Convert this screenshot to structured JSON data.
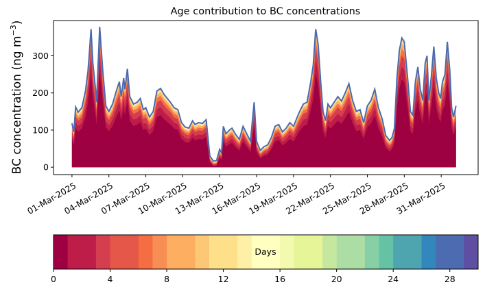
{
  "chart_data": [
    {
      "type": "area",
      "title": "Age contribution to BC concentrations",
      "xlabel": "",
      "ylabel": "BC concentration (ng m",
      "ylabel_unit_superscript": "−3",
      "ylabel_close": ")",
      "ylim": [
        -20,
        395
      ],
      "yticks": [
        0,
        100,
        200,
        300
      ],
      "xlim_days": [
        -1.5,
        33.0
      ],
      "xtick_positions_days": [
        0,
        3,
        6,
        9,
        12,
        15,
        18,
        21,
        24,
        27,
        30
      ],
      "xticks": [
        "01-Mar-2025",
        "04-Mar-2025",
        "07-Mar-2025",
        "10-Mar-2025",
        "13-Mar-2025",
        "16-Mar-2025",
        "19-Mar-2025",
        "22-Mar-2025",
        "25-Mar-2025",
        "28-Mar-2025",
        "31-Mar-2025"
      ],
      "x_days": [
        0.0,
        0.15,
        0.3,
        0.5,
        0.8,
        1.1,
        1.3,
        1.4,
        1.55,
        1.7,
        1.9,
        2.0,
        2.25,
        2.5,
        2.75,
        3.0,
        3.3,
        3.6,
        3.85,
        4.0,
        4.2,
        4.3,
        4.5,
        4.7,
        5.0,
        5.3,
        5.55,
        5.8,
        6.0,
        6.3,
        6.6,
        6.9,
        7.2,
        7.5,
        7.75,
        8.0,
        8.3,
        8.6,
        8.9,
        9.2,
        9.5,
        9.8,
        10.0,
        10.3,
        10.6,
        10.9,
        11.2,
        11.5,
        11.75,
        12.0,
        12.15,
        12.3,
        12.5,
        12.8,
        13.0,
        13.3,
        13.6,
        13.9,
        14.2,
        14.5,
        14.8,
        15.0,
        15.3,
        15.6,
        15.9,
        16.2,
        16.5,
        16.8,
        17.1,
        17.4,
        17.7,
        18.0,
        18.3,
        18.5,
        18.8,
        19.1,
        19.4,
        19.6,
        19.8,
        20.0,
        20.2,
        20.4,
        20.6,
        20.8,
        21.0,
        21.3,
        21.6,
        21.9,
        22.2,
        22.5,
        22.8,
        23.1,
        23.4,
        23.7,
        24.0,
        24.3,
        24.6,
        24.9,
        25.2,
        25.5,
        25.8,
        26.0,
        26.2,
        26.4,
        26.6,
        26.8,
        27.0,
        27.3,
        27.5,
        27.7,
        27.9,
        28.1,
        28.3,
        28.5,
        28.7,
        28.85,
        29.0,
        29.2,
        29.4,
        29.6,
        29.8,
        29.95,
        30.1,
        30.3,
        30.5,
        30.7,
        30.85,
        31.0,
        31.2
      ],
      "total_concentration": [
        118,
        95,
        162,
        148,
        160,
        205,
        258,
        300,
        372,
        280,
        215,
        175,
        378,
        260,
        165,
        150,
        170,
        205,
        230,
        190,
        240,
        210,
        265,
        190,
        170,
        175,
        185,
        155,
        160,
        135,
        150,
        205,
        212,
        195,
        185,
        175,
        160,
        155,
        120,
        108,
        105,
        125,
        115,
        120,
        118,
        128,
        30,
        16,
        18,
        48,
        38,
        110,
        90,
        100,
        105,
        88,
        75,
        110,
        90,
        70,
        175,
        70,
        45,
        55,
        60,
        80,
        110,
        115,
        95,
        105,
        120,
        110,
        135,
        150,
        170,
        175,
        230,
        275,
        372,
        330,
        235,
        150,
        125,
        170,
        160,
        175,
        190,
        178,
        200,
        225,
        180,
        150,
        155,
        120,
        165,
        180,
        210,
        160,
        130,
        85,
        72,
        80,
        105,
        240,
        315,
        348,
        338,
        230,
        150,
        140,
        230,
        270,
        210,
        180,
        280,
        300,
        180,
        245,
        325,
        240,
        200,
        185,
        230,
        250,
        338,
        260,
        160,
        135,
        165
      ],
      "colorbar": {
        "label": "Days",
        "range": [
          0,
          30
        ],
        "ticks": [
          0,
          4,
          8,
          12,
          16,
          20,
          24,
          28
        ],
        "palette": "Spectral",
        "colors": [
          "#9e0142",
          "#bd1d48",
          "#d53e4f",
          "#e55749",
          "#f46d43",
          "#f88e53",
          "#fdae61",
          "#fdc876",
          "#fee08b",
          "#fff0a8",
          "#ffffbf",
          "#f3f9ae",
          "#e6f598",
          "#c6e89e",
          "#abdda4",
          "#87cfa4",
          "#66c2a5",
          "#4ea5b0",
          "#3288bd",
          "#4d6bb0",
          "#5e4fa2"
        ]
      },
      "line_color": "#4c6aae",
      "grid": false,
      "legend": "none"
    }
  ]
}
